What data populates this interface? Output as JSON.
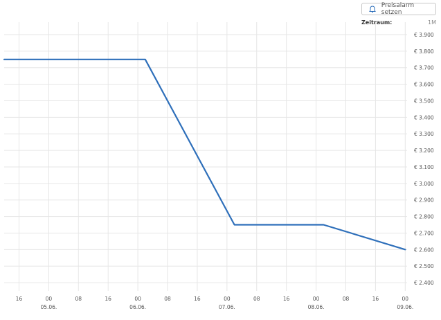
{
  "toolbar": {
    "price_alarm_label": "Preisalarm setzen",
    "range_label": "Zeitraum:",
    "range_value": "1M"
  },
  "colors": {
    "line": "#2e6fba",
    "grid": "#e6e6e6",
    "tick_text": "#555555"
  },
  "chart_data": {
    "type": "line",
    "title": "",
    "xlabel": "",
    "ylabel": "",
    "y_unit_prefix": "€",
    "ylim": [
      2350,
      3950
    ],
    "yticks": [
      2400,
      2500,
      2600,
      2700,
      2800,
      2900,
      3000,
      3100,
      3200,
      3300,
      3400,
      3500,
      3600,
      3700,
      3800,
      3900
    ],
    "ytick_labels": [
      "€ 2.400",
      "€ 2.500",
      "€ 2.600",
      "€ 2.700",
      "€ 2.800",
      "€ 2.900",
      "€ 3.000",
      "€ 3.100",
      "€ 3.200",
      "€ 3.300",
      "€ 3.400",
      "€ 3.500",
      "€ 3.600",
      "€ 3.700",
      "€ 3.800",
      "€ 3.900"
    ],
    "xlim": [
      "2024-06-04 12:00",
      "2024-06-09 00:30"
    ],
    "xticks": [
      {
        "x": "2024-06-04 16:00",
        "label": "16",
        "date": ""
      },
      {
        "x": "2024-06-05 00:00",
        "label": "00",
        "date": "05.06."
      },
      {
        "x": "2024-06-05 08:00",
        "label": "08",
        "date": ""
      },
      {
        "x": "2024-06-05 16:00",
        "label": "16",
        "date": ""
      },
      {
        "x": "2024-06-06 00:00",
        "label": "00",
        "date": "06.06."
      },
      {
        "x": "2024-06-06 08:00",
        "label": "08",
        "date": ""
      },
      {
        "x": "2024-06-06 16:00",
        "label": "16",
        "date": ""
      },
      {
        "x": "2024-06-07 00:00",
        "label": "00",
        "date": "07.06."
      },
      {
        "x": "2024-06-07 08:00",
        "label": "08",
        "date": ""
      },
      {
        "x": "2024-06-07 16:00",
        "label": "16",
        "date": ""
      },
      {
        "x": "2024-06-08 00:00",
        "label": "00",
        "date": "08.06."
      },
      {
        "x": "2024-06-08 08:00",
        "label": "08",
        "date": ""
      },
      {
        "x": "2024-06-08 16:00",
        "label": "16",
        "date": ""
      },
      {
        "x": "2024-06-09 00:00",
        "label": "00",
        "date": "09.06."
      }
    ],
    "series": [
      {
        "points": [
          {
            "x": "2024-06-04 12:00",
            "y": 3750
          },
          {
            "x": "2024-06-06 02:00",
            "y": 3750
          },
          {
            "x": "2024-06-07 02:00",
            "y": 2750
          },
          {
            "x": "2024-06-08 02:00",
            "y": 2750
          },
          {
            "x": "2024-06-09 00:00",
            "y": 2600
          }
        ]
      }
    ],
    "grid": true,
    "legend": "none"
  }
}
